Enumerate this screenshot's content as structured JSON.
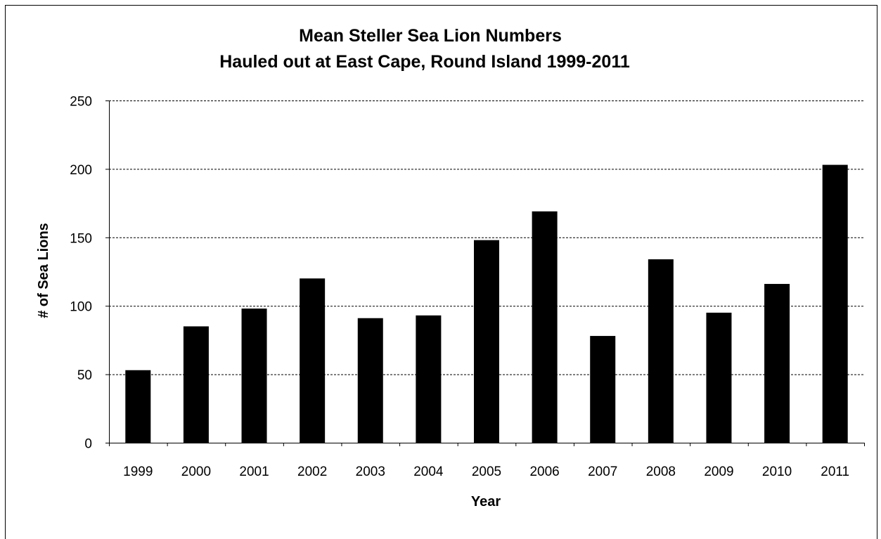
{
  "chart_data": {
    "type": "bar",
    "title": "Mean Steller Sea Lion Numbers",
    "subtitle": "Hauled out at East Cape, Round Island 1999-2011",
    "xlabel": "Year",
    "ylabel": "# of Sea Lions",
    "categories": [
      "1999",
      "2000",
      "2001",
      "2002",
      "2003",
      "2004",
      "2005",
      "2006",
      "2007",
      "2008",
      "2009",
      "2010",
      "2011"
    ],
    "values": [
      53,
      85,
      98,
      120,
      91,
      93,
      148,
      169,
      78,
      134,
      95,
      116,
      203
    ],
    "ylim": [
      0,
      250
    ],
    "yticks": [
      0,
      50,
      100,
      150,
      200,
      250
    ],
    "grid": "horizontal-dashed",
    "legend": "none",
    "bar_color": "#000000"
  }
}
